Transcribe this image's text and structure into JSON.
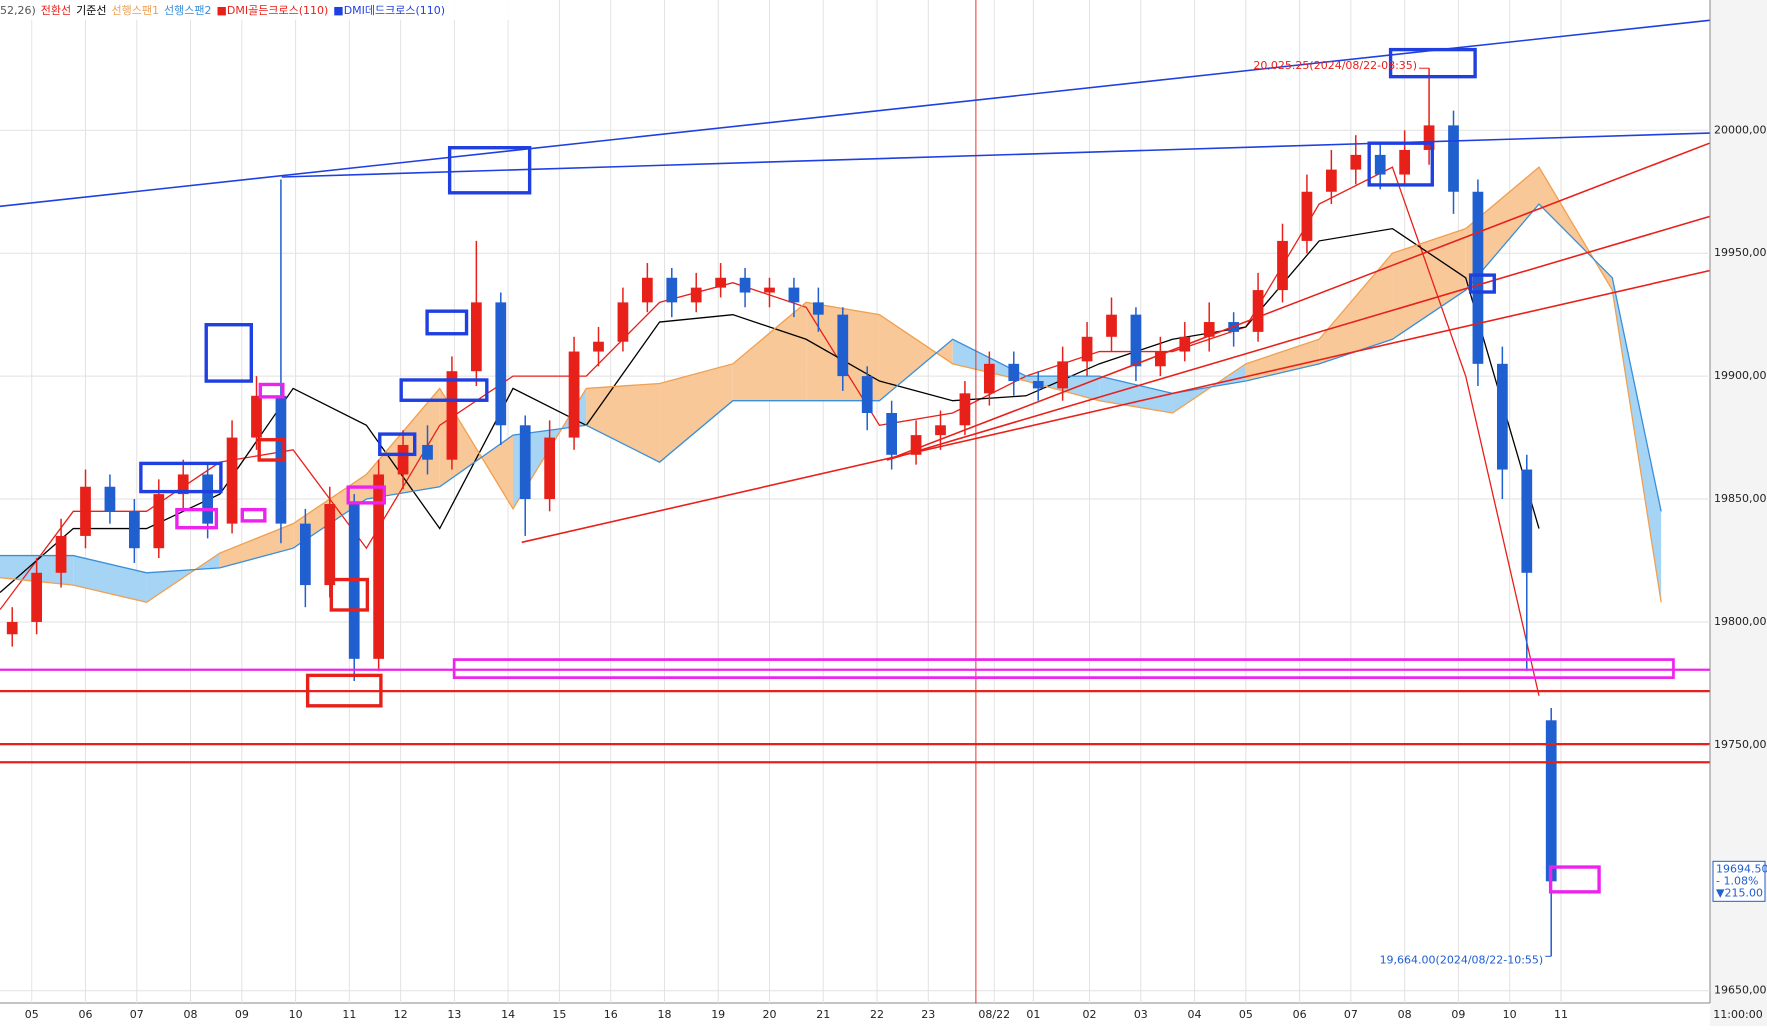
{
  "chart_data": {
    "type": "candlestick",
    "header_label": "52,26)",
    "up_color": "#e8201a",
    "down_color": "#1f5fd0",
    "ohlc": [
      [
        19795,
        19806,
        19790,
        19800
      ],
      [
        19800,
        19826,
        19795,
        19820
      ],
      [
        19820,
        19842,
        19814,
        19835
      ],
      [
        19835,
        19862,
        19830,
        19855
      ],
      [
        19855,
        19860,
        19840,
        19845
      ],
      [
        19845,
        19850,
        19824,
        19830
      ],
      [
        19830,
        19858,
        19826,
        19852
      ],
      [
        19852,
        19866,
        19846,
        19860
      ],
      [
        19860,
        19864,
        19834,
        19840
      ],
      [
        19840,
        19882,
        19836,
        19875
      ],
      [
        19875,
        19900,
        19870,
        19892
      ],
      [
        19892,
        19980,
        19832,
        19840
      ],
      [
        19840,
        19846,
        19806,
        19815
      ],
      [
        19815,
        19855,
        19810,
        19848
      ],
      [
        19848,
        19852,
        19776,
        19785
      ],
      [
        19785,
        19866,
        19780,
        19860
      ],
      [
        19860,
        19878,
        19854,
        19872
      ],
      [
        19872,
        19880,
        19860,
        19866
      ],
      [
        19866,
        19908,
        19862,
        19902
      ],
      [
        19902,
        19955,
        19896,
        19930
      ],
      [
        19930,
        19934,
        19872,
        19880
      ],
      [
        19880,
        19884,
        19835,
        19850
      ],
      [
        19850,
        19882,
        19845,
        19875
      ],
      [
        19875,
        19916,
        19870,
        19910
      ],
      [
        19910,
        19920,
        19904,
        19914
      ],
      [
        19914,
        19936,
        19910,
        19930
      ],
      [
        19930,
        19946,
        19926,
        19940
      ],
      [
        19940,
        19944,
        19924,
        19930
      ],
      [
        19930,
        19942,
        19926,
        19936
      ],
      [
        19936,
        19946,
        19932,
        19940
      ],
      [
        19940,
        19944,
        19928,
        19934
      ],
      [
        19934,
        19940,
        19928,
        19936
      ],
      [
        19936,
        19940,
        19924,
        19930
      ],
      [
        19930,
        19936,
        19918,
        19925
      ],
      [
        19925,
        19928,
        19894,
        19900
      ],
      [
        19900,
        19904,
        19878,
        19885
      ],
      [
        19885,
        19890,
        19862,
        19868
      ],
      [
        19868,
        19882,
        19864,
        19876
      ],
      [
        19876,
        19886,
        19870,
        19880
      ],
      [
        19880,
        19898,
        19876,
        19893
      ],
      [
        19893,
        19910,
        19888,
        19905
      ],
      [
        19905,
        19910,
        19892,
        19898
      ],
      [
        19898,
        19902,
        19890,
        19895
      ],
      [
        19895,
        19912,
        19890,
        19906
      ],
      [
        19906,
        19922,
        19900,
        19916
      ],
      [
        19916,
        19932,
        19910,
        19925
      ],
      [
        19925,
        19928,
        19898,
        19904
      ],
      [
        19904,
        19916,
        19900,
        19910
      ],
      [
        19910,
        19922,
        19906,
        19916
      ],
      [
        19916,
        19930,
        19910,
        19922
      ],
      [
        19922,
        19926,
        19912,
        19918
      ],
      [
        19918,
        19942,
        19914,
        19935
      ],
      [
        19935,
        19962,
        19930,
        19955
      ],
      [
        19955,
        19982,
        19950,
        19975
      ],
      [
        19975,
        19992,
        19970,
        19984
      ],
      [
        19984,
        19998,
        19978,
        19990
      ],
      [
        19990,
        19995,
        19976,
        19982
      ],
      [
        19982,
        20000,
        19978,
        19992
      ],
      [
        19992,
        20025.25,
        19986,
        20002
      ],
      [
        20002,
        20008,
        19966,
        19975
      ],
      [
        19975,
        19980,
        19896,
        19905
      ],
      [
        19905,
        19912,
        19850,
        19862
      ],
      [
        19862,
        19868,
        19780,
        19820
      ],
      [
        19760,
        19765,
        19664,
        19694.5
      ]
    ],
    "series": [
      {
        "name": "전환선",
        "color": "#e8201a",
        "x": [
          0,
          3,
          6,
          9,
          12,
          15,
          18,
          21,
          24,
          27,
          30,
          33,
          36,
          39,
          42,
          45,
          48,
          51,
          54,
          57,
          60,
          63
        ],
        "values": [
          19805,
          19845,
          19845,
          19865,
          19870,
          19830,
          19880,
          19900,
          19900,
          19930,
          19938,
          19928,
          19880,
          19885,
          19900,
          19910,
          19910,
          19920,
          19970,
          19985,
          19900,
          19770
        ]
      },
      {
        "name": "기준선",
        "color": "#000000",
        "x": [
          0,
          3,
          6,
          9,
          12,
          15,
          18,
          21,
          24,
          27,
          30,
          33,
          36,
          39,
          42,
          45,
          48,
          51,
          54,
          57,
          60,
          63
        ],
        "values": [
          19812,
          19838,
          19838,
          19852,
          19895,
          19880,
          19838,
          19895,
          19880,
          19922,
          19925,
          19915,
          19898,
          19890,
          19892,
          19905,
          19915,
          19920,
          19955,
          19960,
          19940,
          19838
        ]
      },
      {
        "name": "선행스팬1",
        "color": "#f0a050",
        "x": [
          0,
          3,
          6,
          9,
          12,
          15,
          18,
          21,
          24,
          27,
          30,
          33,
          36,
          39,
          42,
          45,
          48,
          51,
          54,
          57,
          60,
          63,
          66,
          68
        ],
        "values": [
          19818,
          19815,
          19808,
          19828,
          19840,
          19860,
          19895,
          19846,
          19895,
          19897,
          19905,
          19930,
          19925,
          19905,
          19898,
          19890,
          19885,
          19905,
          19915,
          19950,
          19960,
          19985,
          19935,
          19808
        ]
      },
      {
        "name": "선행스팬2",
        "color": "#3a8fd8",
        "x": [
          0,
          3,
          6,
          9,
          12,
          15,
          18,
          21,
          24,
          27,
          30,
          33,
          36,
          39,
          42,
          45,
          48,
          51,
          54,
          57,
          60,
          63,
          66,
          68
        ],
        "values": [
          19827,
          19827,
          19820,
          19822,
          19830,
          19850,
          19855,
          19876,
          19880,
          19865,
          19890,
          19890,
          19890,
          19915,
          19900,
          19900,
          19893,
          19898,
          19905,
          19915,
          19935,
          19970,
          19940,
          19845
        ]
      }
    ],
    "signals": [
      {
        "name": "■DMI골든크로스(110)",
        "color": "#e8201a"
      },
      {
        "name": "■DMI데드크로스(110)",
        "color": "#1f3fe0"
      }
    ],
    "xlim": [
      0,
      70
    ],
    "xticks": [
      {
        "value": 1.3,
        "label": "05"
      },
      {
        "value": 3.5,
        "label": "06"
      },
      {
        "value": 5.6,
        "label": "07"
      },
      {
        "value": 7.8,
        "label": "08"
      },
      {
        "value": 9.9,
        "label": "09"
      },
      {
        "value": 12.1,
        "label": "10"
      },
      {
        "value": 14.3,
        "label": "11"
      },
      {
        "value": 16.4,
        "label": "12"
      },
      {
        "value": 18.6,
        "label": "13"
      },
      {
        "value": 20.8,
        "label": "14"
      },
      {
        "value": 22.9,
        "label": "15"
      },
      {
        "value": 25,
        "label": "16"
      },
      {
        "value": 27.2,
        "label": "18"
      },
      {
        "value": 29.4,
        "label": "19"
      },
      {
        "value": 31.5,
        "label": "20"
      },
      {
        "value": 33.7,
        "label": "21"
      },
      {
        "value": 35.9,
        "label": "22"
      },
      {
        "value": 38,
        "label": "23"
      },
      {
        "value": 40.7,
        "label": "08/22"
      },
      {
        "value": 42.3,
        "label": "01"
      },
      {
        "value": 44.6,
        "label": "02"
      },
      {
        "value": 46.7,
        "label": "03"
      },
      {
        "value": 48.9,
        "label": "04"
      },
      {
        "value": 51,
        "label": "05"
      },
      {
        "value": 53.2,
        "label": "06"
      },
      {
        "value": 55.3,
        "label": "07"
      },
      {
        "value": 57.5,
        "label": "08"
      },
      {
        "value": 59.7,
        "label": "09"
      },
      {
        "value": 61.8,
        "label": "10"
      },
      {
        "value": 63.9,
        "label": "11"
      }
    ],
    "time_label": "11:00:00",
    "ylim": [
      19645,
      20053
    ],
    "yticks": [
      {
        "value": 19650,
        "label": "19650,00"
      },
      {
        "value": 19750,
        "label": "19750,00"
      },
      {
        "value": 19800,
        "label": "19800,00"
      },
      {
        "value": 19850,
        "label": "19850,00"
      },
      {
        "value": 19900,
        "label": "19900,00"
      },
      {
        "value": 19950,
        "label": "19950,00"
      },
      {
        "value": 20000,
        "label": "20000,00"
      }
    ],
    "high_annotation": {
      "value": 20025.25,
      "label": "20,025.25(2024/08/22-08:35)"
    },
    "low_annotation": {
      "value": 19664,
      "label": "19,664.00(2024/08/22-10:55)"
    },
    "price_box": {
      "value": 19694.5,
      "label": "19694.50",
      "change": "- 1.08%",
      "diff": "▼215.00"
    }
  }
}
